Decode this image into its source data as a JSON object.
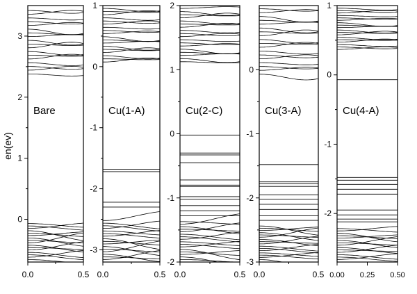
{
  "ylabel": "en(ev)",
  "chart_data": [
    {
      "type": "line",
      "label": "Bare",
      "ylim": [
        -0.7,
        3.5
      ],
      "yticks": [
        0,
        1,
        2,
        3
      ],
      "ytick_labels": [
        "0",
        "1",
        "2",
        "3"
      ],
      "xlim": [
        0.0,
        0.5
      ],
      "xtick_labels": [
        "0.0",
        "0.5"
      ],
      "conduction": {
        "lo": 2.35,
        "hi": 3.45,
        "n": 18
      },
      "valence": {
        "lo": -0.68,
        "hi": -0.05,
        "n": 16
      },
      "flat_levels": []
    },
    {
      "type": "line",
      "label": "Cu(1-A)",
      "ylim": [
        -3.2,
        1.0
      ],
      "yticks": [
        -3,
        -2,
        -1,
        0,
        1
      ],
      "ytick_labels": [
        "-3",
        "-2",
        "-1",
        "0",
        "1"
      ],
      "xlim": [
        0.0,
        0.5
      ],
      "xtick_labels": [
        "0.0",
        "0.5"
      ],
      "conduction": {
        "lo": 0.05,
        "hi": 0.98,
        "n": 18
      },
      "valence": {
        "lo": -3.18,
        "hi": -2.5,
        "n": 16
      },
      "flat_levels": [
        -1.68,
        -1.72,
        -2.22,
        -2.3
      ]
    },
    {
      "type": "line",
      "label": "Cu(2-C)",
      "ylim": [
        -2.0,
        2.0
      ],
      "yticks": [
        -2,
        -1,
        0,
        1,
        2
      ],
      "ytick_labels": [
        "-2",
        "-1",
        "0",
        "1",
        "2"
      ],
      "xlim": [
        0.0,
        0.5
      ],
      "xtick_labels": [
        "0.0",
        "0.5"
      ],
      "conduction": {
        "lo": 1.1,
        "hi": 1.98,
        "n": 18
      },
      "valence": {
        "lo": -1.98,
        "hi": -1.35,
        "n": 16
      },
      "flat_levels": [
        -0.02,
        -0.3,
        -0.33,
        -0.45,
        -0.72,
        -0.8,
        -0.82,
        -0.98,
        -1.02,
        -1.12,
        -1.2,
        -1.28
      ]
    },
    {
      "type": "line",
      "label": "Cu(3-A)",
      "ylim": [
        -3.0,
        1.0
      ],
      "yticks": [
        -3,
        -2,
        -1,
        0
      ],
      "ytick_labels": [
        "-3",
        "-2",
        "-1",
        "0"
      ],
      "xlim": [
        0.0,
        0.5
      ],
      "xtick_labels": [
        "0.0",
        "0.5"
      ],
      "conduction": {
        "lo": -0.1,
        "hi": 0.98,
        "n": 18
      },
      "valence": {
        "lo": -2.98,
        "hi": -2.42,
        "n": 16
      },
      "flat_levels": [
        -1.48,
        -1.75,
        -1.78,
        -1.82,
        -1.95,
        -2.02,
        -2.1,
        -2.18,
        -2.28,
        -2.35
      ]
    },
    {
      "type": "line",
      "label": "Cu(4-A)",
      "ylim": [
        -2.7,
        1.0
      ],
      "yticks": [
        -2,
        -1,
        0,
        1
      ],
      "ytick_labels": [
        "-2",
        "-1",
        "0",
        "1"
      ],
      "xlim": [
        0.0,
        0.5
      ],
      "xtick_labels": [
        "0.00",
        "0.25",
        "0.50"
      ],
      "conduction": {
        "lo": 0.35,
        "hi": 0.98,
        "n": 18
      },
      "valence": {
        "lo": -2.68,
        "hi": -2.2,
        "n": 14
      },
      "flat_levels": [
        -0.07,
        -1.48,
        -1.52,
        -1.58,
        -1.65,
        -1.72,
        -1.95,
        -2.02,
        -2.08,
        -2.12
      ]
    }
  ]
}
